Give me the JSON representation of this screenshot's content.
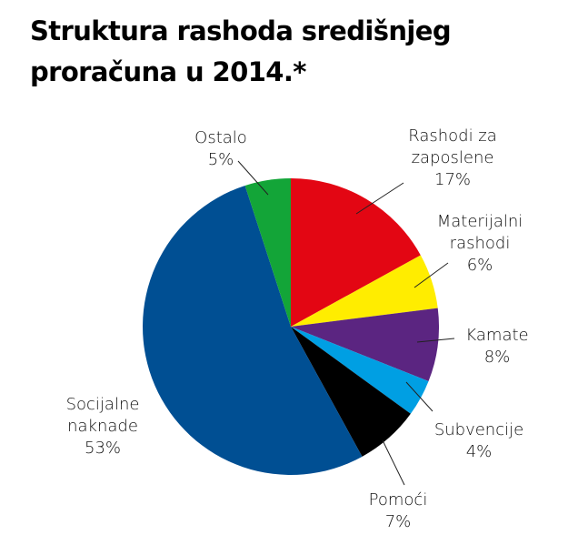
{
  "title": {
    "line1": "Struktura rashoda središnjeg",
    "line2": "proračuna u 2014.*"
  },
  "chart_data": {
    "type": "pie",
    "title": "Struktura rashoda središnjeg proračuna u 2014.*",
    "start_angle_deg": 0,
    "direction": "clockwise",
    "slices": [
      {
        "label": "Rashodi za zaposlene",
        "value": 17,
        "display": "17%",
        "color": "#e30613"
      },
      {
        "label": "Materijalni rashodi",
        "value": 6,
        "display": "6%",
        "color": "#ffed00"
      },
      {
        "label": "Kamate",
        "value": 8,
        "display": "8%",
        "color": "#5b2581"
      },
      {
        "label": "Subvencije",
        "value": 4,
        "display": "4%",
        "color": "#009fe3"
      },
      {
        "label": "Pomoći",
        "value": 7,
        "display": "7%",
        "color": "#000000"
      },
      {
        "label": "Socijalne naknade",
        "value": 53,
        "display": "53%",
        "color": "#004f93"
      },
      {
        "label": "Ostalo",
        "value": 5,
        "display": "5%",
        "color": "#13a538"
      }
    ],
    "legend": "none (direct labels with leader lines)"
  },
  "labels": {
    "ostalo": {
      "line1": "Ostalo",
      "pct": "5%"
    },
    "zaposlene": {
      "line1": "Rashodi za",
      "line2": "zaposlene",
      "pct": "17%"
    },
    "materijalni": {
      "line1": "Materijalni",
      "line2": "rashodi",
      "pct": "6%"
    },
    "kamate": {
      "line1": "Kamate",
      "pct": "8%"
    },
    "subvencije": {
      "line1": "Subvencije",
      "pct": "4%"
    },
    "pomoci": {
      "line1": "Pomoći",
      "pct": "7%"
    },
    "socijalne": {
      "line1": "Socijalne",
      "line2": "naknade",
      "pct": "53%"
    }
  }
}
